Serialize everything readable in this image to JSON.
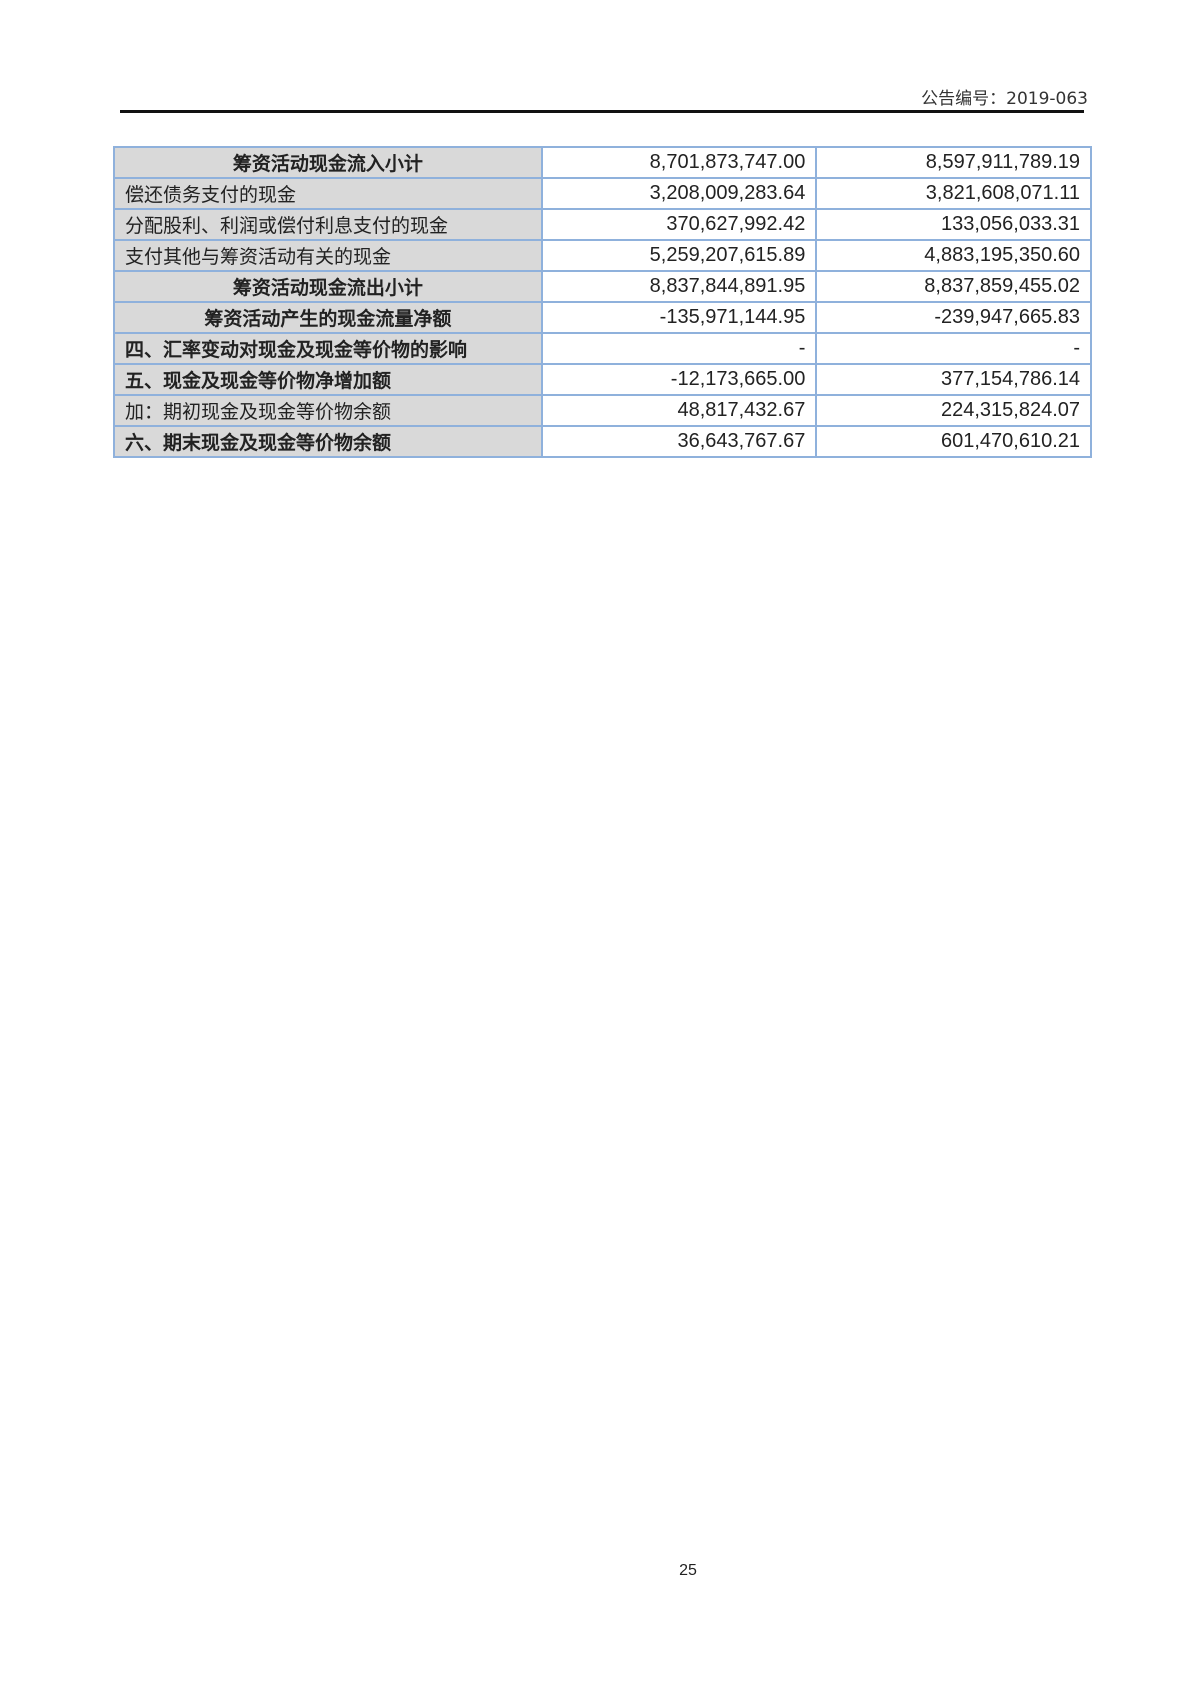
{
  "header": {
    "announcement_no": "公告编号：2019-063"
  },
  "rows": [
    {
      "label": "筹资活动现金流入小计",
      "current": "8,701,873,747.00",
      "previous": "8,597,911,789.19"
    },
    {
      "label": "偿还债务支付的现金",
      "current": "3,208,009,283.64",
      "previous": "3,821,608,071.11"
    },
    {
      "label": "分配股利、利润或偿付利息支付的现金",
      "current": "370,627,992.42",
      "previous": "133,056,033.31"
    },
    {
      "label": "支付其他与筹资活动有关的现金",
      "current": "5,259,207,615.89",
      "previous": "4,883,195,350.60"
    },
    {
      "label": "筹资活动现金流出小计",
      "current": "8,837,844,891.95",
      "previous": "8,837,859,455.02"
    },
    {
      "label": "筹资活动产生的现金流量净额",
      "current": "-135,971,144.95",
      "previous": "-239,947,665.83"
    },
    {
      "label": "四、汇率变动对现金及现金等价物的影响",
      "current": "-",
      "previous": "-"
    },
    {
      "label": "五、现金及现金等价物净增加额",
      "current": "-12,173,665.00",
      "previous": "377,154,786.14"
    },
    {
      "label": "加：期初现金及现金等价物余额",
      "current": "48,817,432.67",
      "previous": "224,315,824.07"
    },
    {
      "label": "六、期末现金及现金等价物余额",
      "current": "36,643,767.67",
      "previous": "601,470,610.21"
    }
  ],
  "footer": {
    "page_number": "25"
  }
}
